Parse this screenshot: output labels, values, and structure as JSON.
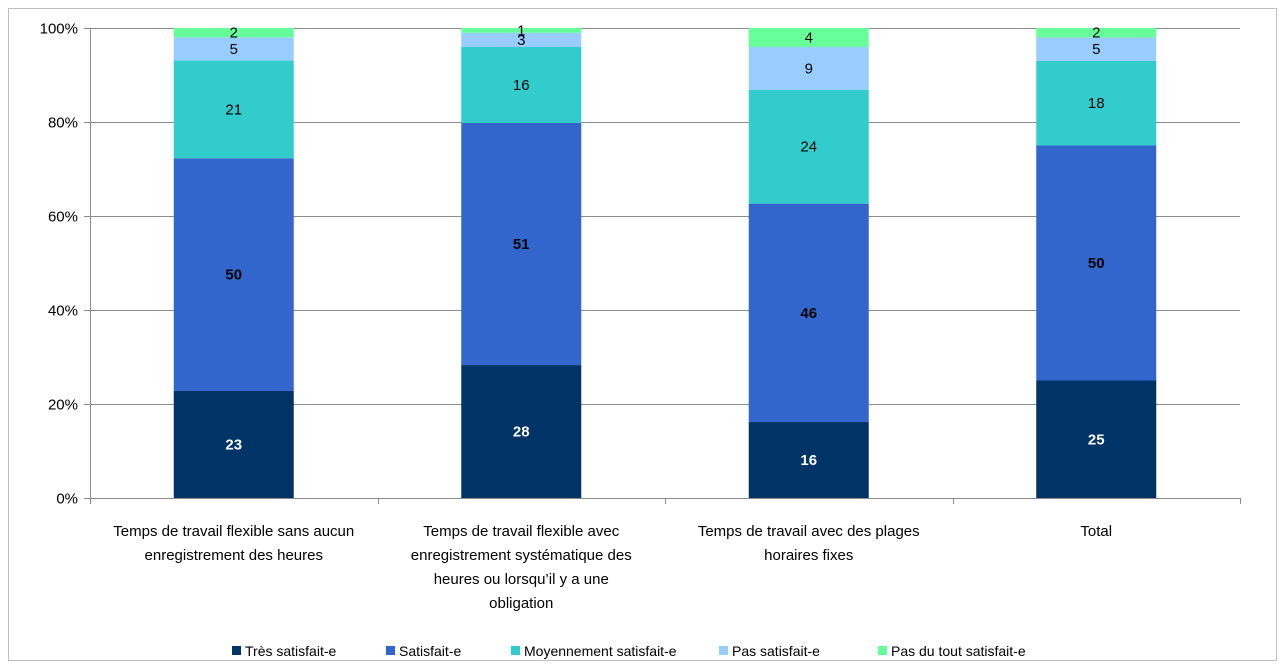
{
  "chart_data": {
    "type": "bar",
    "stacked": true,
    "percent": true,
    "ylim": [
      0,
      100
    ],
    "yticks": [
      "0%",
      "20%",
      "40%",
      "60%",
      "80%",
      "100%"
    ],
    "grid": true,
    "legend_position": "bottom",
    "categories": [
      [
        "Temps de travail flexible sans aucun",
        "enregistrement des heures"
      ],
      [
        "Temps de travail flexible avec",
        "enregistrement systématique des",
        "heures ou lorsqu’il y a une",
        "obligation"
      ],
      [
        "Temps de travail avec des plages",
        "horaires fixes"
      ],
      [
        "Total"
      ]
    ],
    "series": [
      {
        "name": "Très satisfait-e",
        "color": "#003366",
        "label_color": "#ffffff",
        "bold": true,
        "values": [
          23,
          28,
          16,
          25
        ]
      },
      {
        "name": "Satisfait-e",
        "color": "#3366cc",
        "label_color": "#000000",
        "bold": true,
        "values": [
          50,
          51,
          46,
          50
        ]
      },
      {
        "name": "Moyennement satisfait-e",
        "color": "#33cccc",
        "label_color": "#000000",
        "bold": false,
        "values": [
          21,
          16,
          24,
          18
        ]
      },
      {
        "name": "Pas satisfait-e",
        "color": "#99ccff",
        "label_color": "#000000",
        "bold": false,
        "values": [
          5,
          3,
          9,
          5
        ]
      },
      {
        "name": "Pas du tout satisfait-e",
        "color": "#66ff99",
        "label_color": "#000000",
        "bold": false,
        "values": [
          2,
          1,
          4,
          2
        ]
      }
    ]
  }
}
